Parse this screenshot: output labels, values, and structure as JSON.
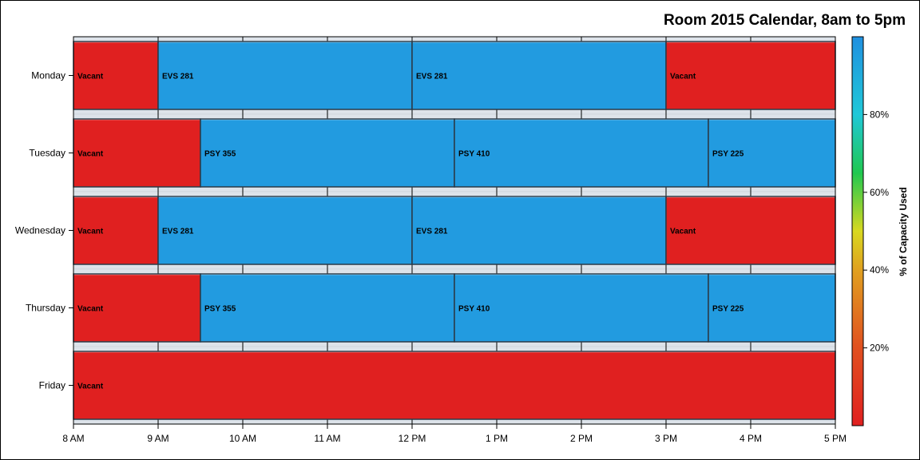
{
  "chart_data": {
    "type": "bar",
    "title": "Room 2015 Calendar, 8am to 5pm",
    "x_ticks": [
      "8 AM",
      "9 AM",
      "10 AM",
      "11 AM",
      "12 PM",
      "1 PM",
      "2 PM",
      "3 PM",
      "4 PM",
      "5 PM"
    ],
    "xlim": [
      8,
      17
    ],
    "days": [
      "Monday",
      "Tuesday",
      "Wednesday",
      "Thursday",
      "Friday"
    ],
    "segments": [
      {
        "day": "Monday",
        "label": "Vacant",
        "start": 8,
        "end": 9,
        "capacity": 0
      },
      {
        "day": "Monday",
        "label": "EVS 281",
        "start": 9,
        "end": 12,
        "capacity": 100
      },
      {
        "day": "Monday",
        "label": "EVS 281",
        "start": 12,
        "end": 15,
        "capacity": 100
      },
      {
        "day": "Monday",
        "label": "Vacant",
        "start": 15,
        "end": 17,
        "capacity": 0
      },
      {
        "day": "Tuesday",
        "label": "Vacant",
        "start": 8,
        "end": 9.5,
        "capacity": 0
      },
      {
        "day": "Tuesday",
        "label": "PSY 355",
        "start": 9.5,
        "end": 12.5,
        "capacity": 100
      },
      {
        "day": "Tuesday",
        "label": "PSY 410",
        "start": 12.5,
        "end": 15.5,
        "capacity": 100
      },
      {
        "day": "Tuesday",
        "label": "PSY 225",
        "start": 15.5,
        "end": 17,
        "capacity": 100
      },
      {
        "day": "Wednesday",
        "label": "Vacant",
        "start": 8,
        "end": 9,
        "capacity": 0
      },
      {
        "day": "Wednesday",
        "label": "EVS 281",
        "start": 9,
        "end": 12,
        "capacity": 100
      },
      {
        "day": "Wednesday",
        "label": "EVS 281",
        "start": 12,
        "end": 15,
        "capacity": 100
      },
      {
        "day": "Wednesday",
        "label": "Vacant",
        "start": 15,
        "end": 17,
        "capacity": 0
      },
      {
        "day": "Thursday",
        "label": "Vacant",
        "start": 8,
        "end": 9.5,
        "capacity": 0
      },
      {
        "day": "Thursday",
        "label": "PSY 355",
        "start": 9.5,
        "end": 12.5,
        "capacity": 100
      },
      {
        "day": "Thursday",
        "label": "PSY 410",
        "start": 12.5,
        "end": 15.5,
        "capacity": 100
      },
      {
        "day": "Thursday",
        "label": "PSY 225",
        "start": 15.5,
        "end": 17,
        "capacity": 100
      },
      {
        "day": "Friday",
        "label": "Vacant",
        "start": 8,
        "end": 17,
        "capacity": 0
      }
    ],
    "colorbar": {
      "title": "% of Capacity Used",
      "range": [
        0,
        100
      ],
      "ticks": [
        20,
        40,
        60,
        80
      ],
      "tick_labels": [
        "20%",
        "40%",
        "60%",
        "80%"
      ],
      "stops": [
        {
          "value": 0,
          "color": "#e02020"
        },
        {
          "value": 20,
          "color": "#e05020"
        },
        {
          "value": 40,
          "color": "#e0a020"
        },
        {
          "value": 50,
          "color": "#d8d820"
        },
        {
          "value": 65,
          "color": "#20c850"
        },
        {
          "value": 80,
          "color": "#20c8d8"
        },
        {
          "value": 100,
          "color": "#2090e0"
        }
      ]
    },
    "colors": {
      "vacant": "#e02020",
      "used": "#229be0",
      "band": "#e8ecf0"
    },
    "grid": true,
    "legend": "colorbar-right"
  }
}
